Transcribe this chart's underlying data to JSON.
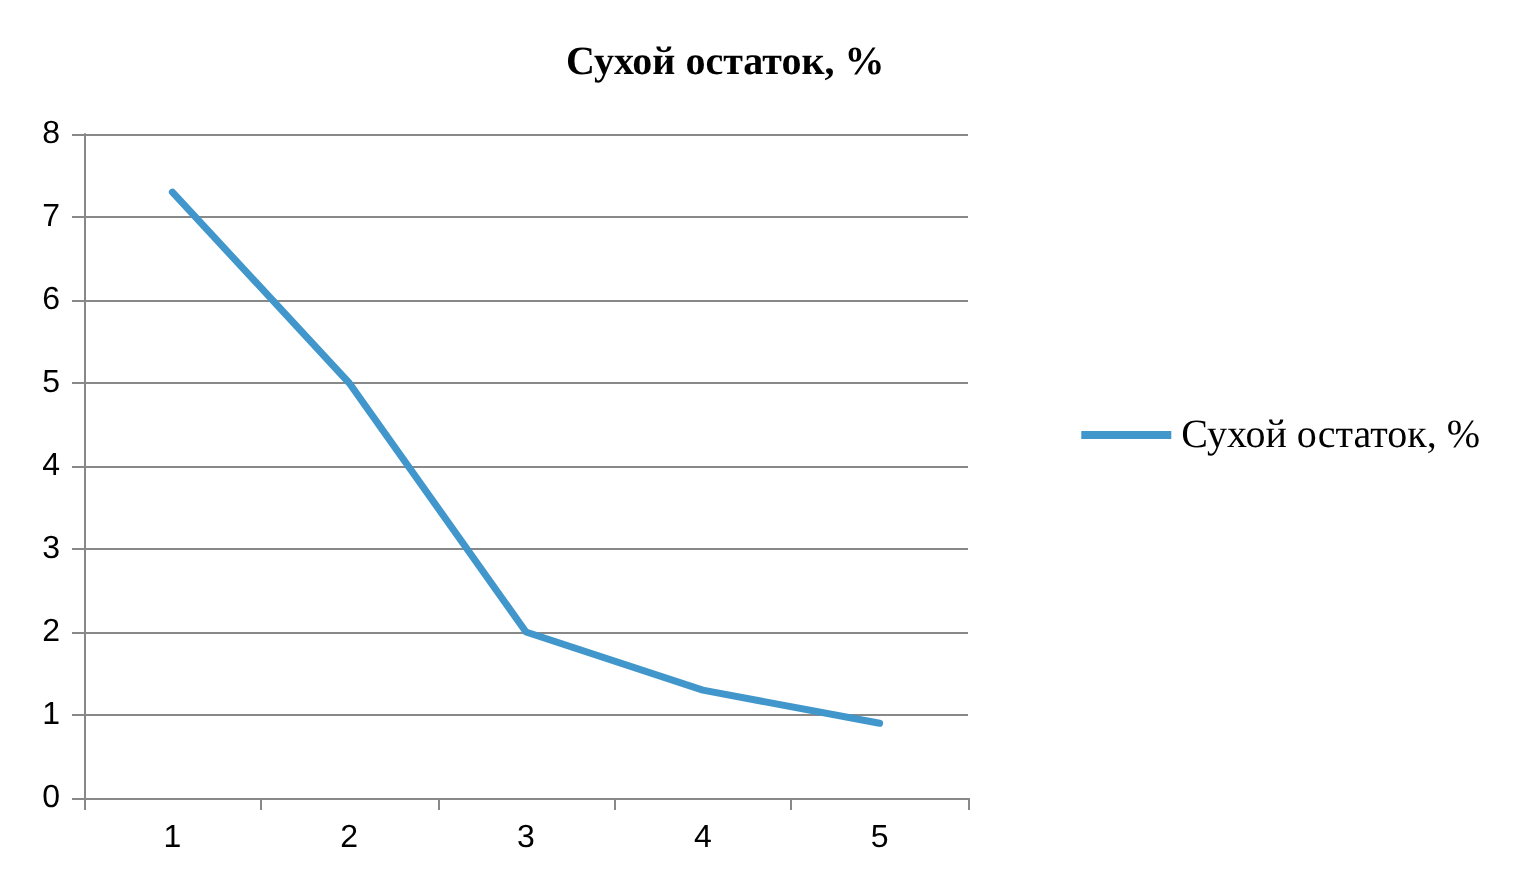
{
  "chart_data": {
    "type": "line",
    "title": "Сухой остаток, %",
    "categories": [
      "1",
      "2",
      "3",
      "4",
      "5"
    ],
    "series": [
      {
        "name": "Сухой остаток, %",
        "color": "#4197cb",
        "values": [
          7.3,
          5.0,
          2.0,
          1.3,
          0.9
        ]
      }
    ],
    "ylim": [
      0,
      8
    ],
    "yticks": [
      0,
      1,
      2,
      3,
      4,
      5,
      6,
      7,
      8
    ],
    "grid": "y",
    "legend": "right",
    "marker": "none",
    "line_style": "solid"
  }
}
